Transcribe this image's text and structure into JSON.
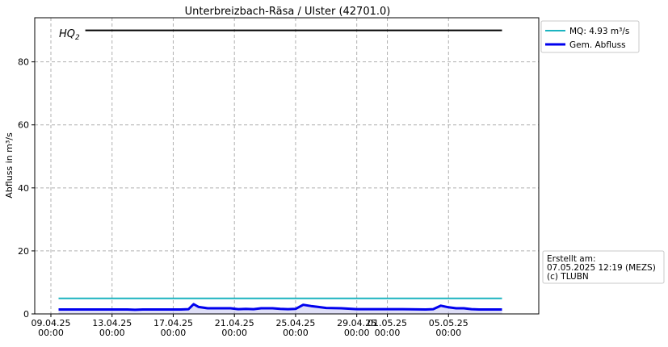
{
  "chart_data": {
    "type": "line",
    "title": "Unterbreizbach-Räsa / Ulster (42701.0)",
    "xlabel": "",
    "ylabel": "Abfluss in m³/s",
    "ylim": [
      0,
      94
    ],
    "xlim": [
      "2025-04-09 00:00",
      "2025-05-09 00:00"
    ],
    "grid": true,
    "legend_position": "top-right (outside plot)",
    "x_ticks": [
      {
        "date": "2025-04-09",
        "line1": "09.04.25",
        "line2": "00:00"
      },
      {
        "date": "2025-04-13",
        "line1": "13.04.25",
        "line2": "00:00"
      },
      {
        "date": "2025-04-17",
        "line1": "17.04.25",
        "line2": "00:00"
      },
      {
        "date": "2025-04-21",
        "line1": "21.04.25",
        "line2": "00:00"
      },
      {
        "date": "2025-04-25",
        "line1": "25.04.25",
        "line2": "00:00"
      },
      {
        "date": "2025-04-29",
        "line1": "29.04.25",
        "line2": "00:00"
      },
      {
        "date": "2025-05-01",
        "line1": "01.05.25",
        "line2": "00:00"
      },
      {
        "date": "2025-05-05",
        "line1": "05.05.25",
        "line2": "00:00"
      }
    ],
    "y_ticks": [
      0,
      20,
      40,
      60,
      80
    ],
    "series": [
      {
        "name": "Gem. Abfluss",
        "color": "#0000ee",
        "x": [
          "2025-04-09 12:00",
          "2025-04-14 00:00",
          "2025-04-14 12:00",
          "2025-04-15 00:00",
          "2025-04-17 12:00",
          "2025-04-18 00:00",
          "2025-04-18 08:00",
          "2025-04-18 16:00",
          "2025-04-19 06:00",
          "2025-04-20 18:00",
          "2025-04-21 06:00",
          "2025-04-21 18:00",
          "2025-04-22 06:00",
          "2025-04-22 18:00",
          "2025-04-23 12:00",
          "2025-04-24 00:00",
          "2025-04-24 12:00",
          "2025-04-25 00:00",
          "2025-04-25 12:00",
          "2025-04-26 00:00",
          "2025-04-26 12:00",
          "2025-04-27 00:00",
          "2025-04-28 00:00",
          "2025-04-29 00:00",
          "2025-04-30 00:00",
          "2025-05-01 00:00",
          "2025-05-02 00:00",
          "2025-05-03 12:00",
          "2025-05-04 00:00",
          "2025-05-04 12:00",
          "2025-05-05 00:00",
          "2025-05-05 12:00",
          "2025-05-06 00:00",
          "2025-05-06 12:00",
          "2025-05-07 00:00",
          "2025-05-07 12:00",
          "2025-05-08 12:00"
        ],
        "values": [
          1.4,
          1.4,
          1.3,
          1.4,
          1.4,
          1.5,
          3.1,
          2.2,
          1.8,
          1.8,
          1.5,
          1.6,
          1.5,
          1.8,
          1.8,
          1.6,
          1.5,
          1.6,
          2.9,
          2.5,
          2.2,
          1.9,
          1.8,
          1.5,
          1.5,
          1.5,
          1.5,
          1.4,
          1.5,
          2.6,
          2.1,
          1.8,
          1.8,
          1.5,
          1.4,
          1.4,
          1.4
        ]
      },
      {
        "name": "MQ: 4.93 m³/s",
        "color": "#1cb4c0",
        "x": [
          "2025-04-09 12:00",
          "2025-05-08 12:00"
        ],
        "values": [
          4.93,
          4.93
        ]
      },
      {
        "name": "",
        "color": "#000000",
        "x": [
          "2025-04-11 06:00",
          "2025-05-08 12:00"
        ],
        "values": [
          90,
          90
        ]
      }
    ],
    "annotations": {
      "hq_base": "HQ",
      "hq_sub": "2"
    }
  },
  "legend": {
    "items": [
      {
        "label": "MQ: 4.93 m³/s",
        "color": "#1cb4c0",
        "width": 2
      },
      {
        "label": "Gem. Abfluss",
        "color": "#0000ee",
        "width": 3
      }
    ]
  },
  "info_box": {
    "line1": "Erstellt am:",
    "line2": "07.05.2025 12:19 (MEZS)",
    "line3": "(c) TLUBN"
  }
}
